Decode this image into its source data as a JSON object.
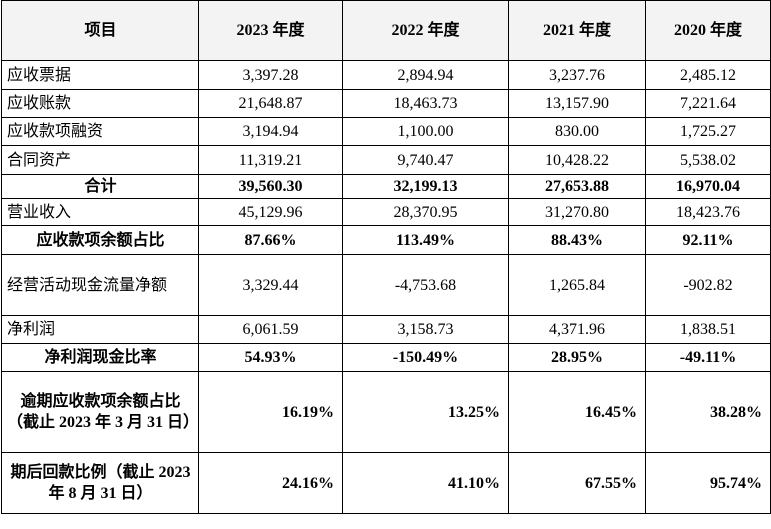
{
  "table": {
    "headers": [
      "项目",
      "2023 年度",
      "2022 年度",
      "2021 年度",
      "2020 年度"
    ],
    "rows": [
      {
        "label": "应收票据",
        "v2023": "3,397.28",
        "v2022": "2,894.94",
        "v2021": "3,237.76",
        "v2020": "2,485.12"
      },
      {
        "label": "应收账款",
        "v2023": "21,648.87",
        "v2022": "18,463.73",
        "v2021": "13,157.90",
        "v2020": "7,221.64"
      },
      {
        "label": "应收款项融资",
        "v2023": "3,194.94",
        "v2022": "1,100.00",
        "v2021": "830.00",
        "v2020": "1,725.27"
      },
      {
        "label": "合同资产",
        "v2023": "11,319.21",
        "v2022": "9,740.47",
        "v2021": "10,428.22",
        "v2020": "5,538.02"
      },
      {
        "label": "合计",
        "v2023": "39,560.30",
        "v2022": "32,199.13",
        "v2021": "27,653.88",
        "v2020": "16,970.04"
      },
      {
        "label": "营业收入",
        "v2023": "45,129.96",
        "v2022": "28,370.95",
        "v2021": "31,270.80",
        "v2020": "18,423.76"
      },
      {
        "label": "应收款项余额占比",
        "v2023": "87.66%",
        "v2022": "113.49%",
        "v2021": "88.43%",
        "v2020": "92.11%"
      },
      {
        "label": "经营活动现金流量净额",
        "v2023": "3,329.44",
        "v2022": "-4,753.68",
        "v2021": "1,265.84",
        "v2020": "-902.82"
      },
      {
        "label": "净利润",
        "v2023": "6,061.59",
        "v2022": "3,158.73",
        "v2021": "4,371.96",
        "v2020": "1,838.51"
      },
      {
        "label": "净利润现金比率",
        "v2023": "54.93%",
        "v2022": "-150.49%",
        "v2021": "28.95%",
        "v2020": "-49.11%"
      },
      {
        "label": "逾期应收款项余额占比（截止 2023 年 3 月 31 日）",
        "v2023": "16.19%",
        "v2022": "13.25%",
        "v2021": "16.45%",
        "v2020": "38.28%"
      },
      {
        "label": "期后回款比例（截止 2023 年 8 月 31 日）",
        "v2023": "24.16%",
        "v2022": "41.10%",
        "v2021": "67.55%",
        "v2020": "95.74%"
      }
    ]
  }
}
